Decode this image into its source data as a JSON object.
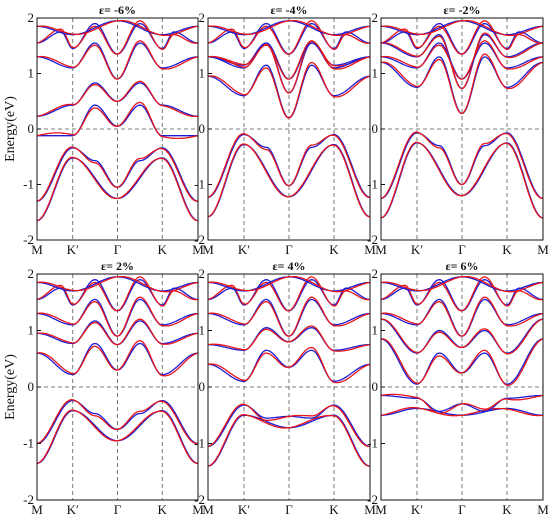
{
  "chart_data": {
    "type": "line",
    "ylabel": "Energy(eV)",
    "xticks": [
      "M",
      "K′",
      "Γ",
      "K",
      "M"
    ],
    "colors": {
      "spin_up": "#e8161b",
      "spin_down": "#1d1dd6"
    },
    "grid": false,
    "legend": "none",
    "panels": [
      {
        "title": "ε= -6%",
        "ylim": [
          -2,
          2
        ],
        "yticks": [
          "2",
          "1",
          "0",
          "-1",
          "-2"
        ],
        "vb_max_at_K": -0.52,
        "vb_at_Gamma": -1.25,
        "vb_at_M": -1.65,
        "cb_min_at_Gamma": 0.05,
        "cb_at_K": -0.12,
        "cb_at_M": -0.12
      },
      {
        "title": "ε= -4%",
        "ylim": [
          -2,
          2
        ],
        "yticks": [
          "2",
          "1",
          "0",
          "-1",
          "-2"
        ],
        "vb_max_at_K": -0.28,
        "vb_at_Gamma": -1.22,
        "vb_at_M": -1.58,
        "cb_min_at_Gamma": 0.2,
        "cb_at_K": 0.6,
        "cb_at_M": 0.95
      },
      {
        "title": "ε= -2%",
        "ylim": [
          -2,
          2
        ],
        "yticks": [
          "2",
          "1",
          "0",
          "-1",
          "-2"
        ],
        "vb_max_at_K": -0.25,
        "vb_at_Gamma": -1.2,
        "vb_at_M": -1.6,
        "cb_min_at_Gamma": 0.28,
        "cb_at_K": 0.75,
        "cb_at_M": 1.2
      },
      {
        "title": "ε= 2%",
        "ylim": [
          -2,
          2
        ],
        "yticks": [
          "2",
          "1",
          "0",
          "-1",
          "-2"
        ],
        "vb_max_at_K": -0.42,
        "vb_at_Gamma": -0.95,
        "vb_at_M": -1.35,
        "cb_min_at_Gamma": 0.3,
        "cb_at_K": 0.22,
        "cb_at_M": 0.6
      },
      {
        "title": "ε= 4%",
        "ylim": [
          -2,
          2
        ],
        "yticks": [
          "2",
          "1",
          "0",
          "-1",
          "-2"
        ],
        "vb_max_at_K": -0.5,
        "vb_at_Gamma": -0.72,
        "vb_at_M": -1.4,
        "cb_min_at_Gamma": 0.35,
        "cb_at_K": 0.1,
        "cb_at_M": 0.4
      },
      {
        "title": "ε= 6%",
        "ylim": [
          -2,
          2
        ],
        "yticks": [
          "2",
          "1",
          "0",
          "-1",
          "-2"
        ],
        "vb_max_at_K": -0.38,
        "vb_at_Gamma": -0.5,
        "vb_at_M": -0.5,
        "cb_min_at_Gamma": 0.25,
        "cb_at_K": 0.05,
        "cb_at_M": 0.85
      }
    ]
  }
}
